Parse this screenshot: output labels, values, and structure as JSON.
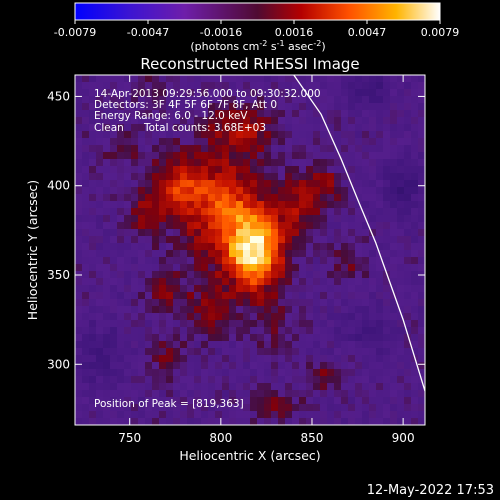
{
  "chart_data": {
    "type": "heatmap",
    "title": "Reconstructed RHESSI Image",
    "xlabel": "Heliocentric X (arcsec)",
    "ylabel": "Heliocentric Y (arcsec)",
    "xlim": [
      720,
      912
    ],
    "ylim": [
      266,
      462
    ],
    "x_ticks": [
      750,
      800,
      850,
      900
    ],
    "y_ticks": [
      300,
      350,
      400,
      450
    ],
    "colorbar": {
      "ticks": [
        "-0.0079",
        "-0.0047",
        "-0.0016",
        "0.0016",
        "0.0047",
        "0.0079"
      ],
      "range": [
        -0.0079,
        0.0079
      ],
      "unit_main": "(photons cm",
      "unit_sup1": "-2",
      "unit_mid": " s",
      "unit_sup2": "-1",
      "unit_mid2": " asec",
      "unit_sup3": "-2",
      "unit_end": ")"
    },
    "annotations": {
      "line1": "14-Apr-2013 09:29:56.000 to 09:30:32.000",
      "line2": "Detectors: 3F 4F 5F 6F 7F 8F, Att 0",
      "line3": "Energy Range: 6.0 - 12.0 keV",
      "line4_method": "Clean",
      "line4_counts": "Total counts: 3.68E+03",
      "peak": "Position of Peak = [819,363]"
    },
    "peak": [
      819,
      363
    ],
    "limb": [
      [
        840,
        462
      ],
      [
        855,
        440
      ],
      [
        866,
        415
      ],
      [
        876,
        390
      ],
      [
        885,
        368
      ],
      [
        893,
        345
      ],
      [
        900,
        325
      ],
      [
        906,
        305
      ],
      [
        912,
        285
      ]
    ],
    "blobs": [
      {
        "x": 819,
        "y": 363,
        "sx": 11,
        "sy": 16,
        "a": 1.0
      },
      {
        "x": 800,
        "y": 388,
        "sx": 16,
        "sy": 22,
        "a": 0.6
      },
      {
        "x": 775,
        "y": 400,
        "sx": 12,
        "sy": 12,
        "a": 0.42
      },
      {
        "x": 758,
        "y": 382,
        "sx": 8,
        "sy": 8,
        "a": 0.3
      },
      {
        "x": 812,
        "y": 432,
        "sx": 12,
        "sy": 10,
        "a": 0.38
      },
      {
        "x": 843,
        "y": 390,
        "sx": 9,
        "sy": 14,
        "a": 0.35
      },
      {
        "x": 858,
        "y": 400,
        "sx": 7,
        "sy": 8,
        "a": 0.3
      },
      {
        "x": 795,
        "y": 330,
        "sx": 9,
        "sy": 10,
        "a": 0.32
      },
      {
        "x": 770,
        "y": 340,
        "sx": 8,
        "sy": 9,
        "a": 0.28
      },
      {
        "x": 770,
        "y": 305,
        "sx": 7,
        "sy": 8,
        "a": 0.26
      },
      {
        "x": 830,
        "y": 320,
        "sx": 8,
        "sy": 9,
        "a": 0.24
      },
      {
        "x": 857,
        "y": 293,
        "sx": 7,
        "sy": 6,
        "a": 0.26
      },
      {
        "x": 830,
        "y": 278,
        "sx": 10,
        "sy": 6,
        "a": 0.3
      },
      {
        "x": 870,
        "y": 355,
        "sx": 7,
        "sy": 9,
        "a": 0.2
      },
      {
        "x": 745,
        "y": 420,
        "sx": 8,
        "sy": 8,
        "a": 0.2
      },
      {
        "x": 760,
        "y": 455,
        "sx": 7,
        "sy": 6,
        "a": 0.18
      },
      {
        "x": 900,
        "y": 400,
        "sx": 8,
        "sy": 12,
        "a": -0.35
      },
      {
        "x": 735,
        "y": 305,
        "sx": 10,
        "sy": 12,
        "a": -0.3
      },
      {
        "x": 880,
        "y": 455,
        "sx": 10,
        "sy": 8,
        "a": -0.3
      },
      {
        "x": 880,
        "y": 320,
        "sx": 10,
        "sy": 10,
        "a": -0.25
      }
    ]
  },
  "footer": {
    "timestamp": "12-May-2022 17:53"
  }
}
